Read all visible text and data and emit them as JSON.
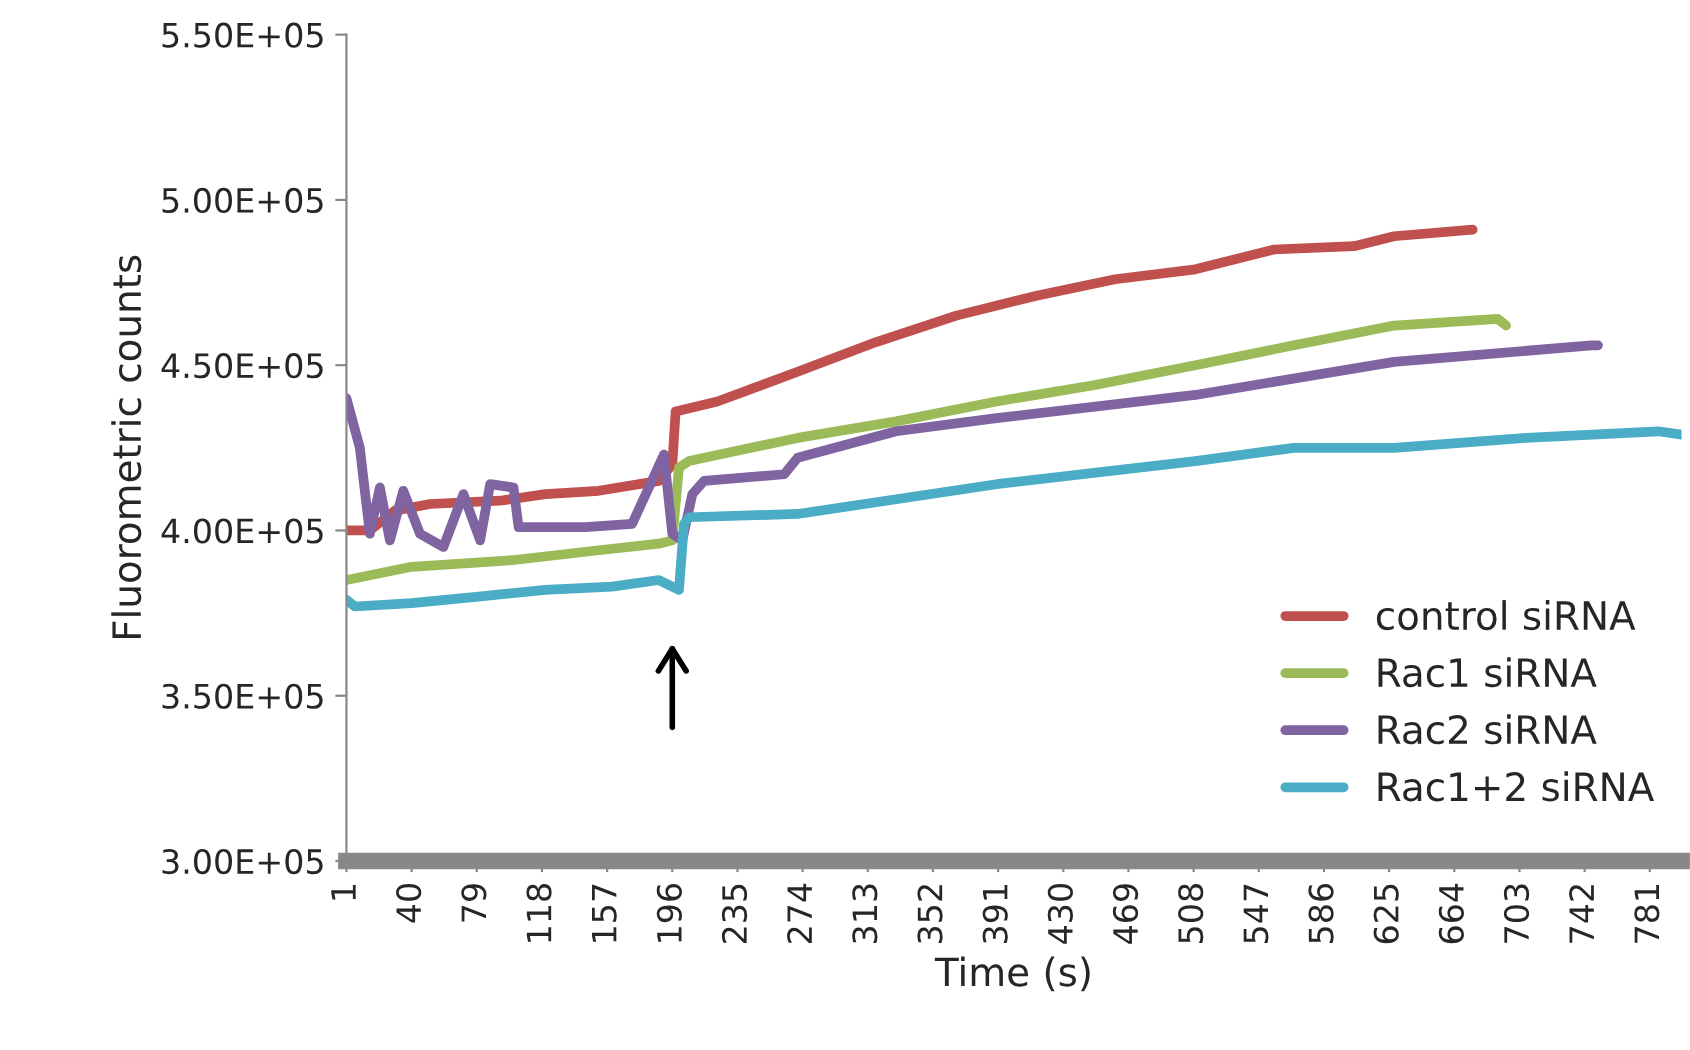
{
  "chart_data": {
    "type": "line",
    "xlabel": "Time (s)",
    "ylabel": "Fluorometric counts",
    "xlim": [
      1,
      800
    ],
    "xticks": [
      1,
      40,
      79,
      118,
      157,
      196,
      235,
      274,
      313,
      352,
      391,
      430,
      469,
      508,
      547,
      586,
      625,
      664,
      703,
      742,
      781
    ],
    "ylim": [
      300000,
      550000
    ],
    "yticks": [
      {
        "value": 300000,
        "label": "3.00E+05"
      },
      {
        "value": 350000,
        "label": "3.50E+05"
      },
      {
        "value": 400000,
        "label": "4.00E+05"
      },
      {
        "value": 450000,
        "label": "4.50E+05"
      },
      {
        "value": 500000,
        "label": "5.00E+05"
      },
      {
        "value": 550000,
        "label": "5.50E+05"
      }
    ],
    "grid": false,
    "legend": "bottom right",
    "line_style": "solid",
    "marker": "none",
    "series": [
      {
        "name": "control siRNA",
        "color": "#c0504d",
        "x": [
          1,
          15,
          30,
          51,
          93,
          120,
          152,
          188,
          196,
          198,
          223,
          271,
          318,
          366,
          414,
          461,
          509,
          556,
          604,
          628,
          675
        ],
        "values": [
          400000,
          400000,
          406000,
          408000,
          409000,
          411000,
          412000,
          415000,
          420000,
          436000,
          439000,
          448000,
          457000,
          465000,
          471000,
          476000,
          479000,
          485000,
          486000,
          489000,
          491000
        ]
      },
      {
        "name": "Rac1 siRNA",
        "color": "#9bbb59",
        "x": [
          1,
          40,
          100,
          152,
          188,
          196,
          200,
          206,
          271,
          330,
          390,
          449,
          509,
          568,
          628,
          690,
          695
        ],
        "values": [
          385000,
          389000,
          391000,
          394000,
          396000,
          397000,
          419000,
          421000,
          428000,
          433000,
          439000,
          444000,
          450000,
          456000,
          462000,
          464000,
          462000
        ]
      },
      {
        "name": "Rac2 siRNA",
        "color": "#8064a2",
        "x": [
          1,
          9,
          15,
          21,
          27,
          35,
          45,
          59,
          71,
          81,
          87,
          101,
          104,
          144,
          172,
          191,
          196,
          202,
          208,
          215,
          263,
          271,
          330,
          390,
          509,
          628,
          746,
          750
        ],
        "values": [
          440000,
          425000,
          399000,
          413000,
          397000,
          412000,
          399000,
          395000,
          411000,
          397000,
          414000,
          413000,
          401000,
          401000,
          402000,
          423000,
          399000,
          397000,
          411000,
          415000,
          417000,
          422000,
          430000,
          434000,
          441000,
          451000,
          456000,
          456000
        ]
      },
      {
        "name": "Rac1+2 siRNA",
        "color": "#4bacc6",
        "x": [
          1,
          6,
          40,
          80,
          120,
          160,
          188,
          200,
          203,
          206,
          271,
          390,
          509,
          568,
          628,
          707,
          786,
          800
        ],
        "values": [
          379000,
          377000,
          378000,
          380000,
          382000,
          383000,
          385000,
          382000,
          402000,
          404000,
          405000,
          414000,
          421000,
          425000,
          425000,
          428000,
          430000,
          429000
        ]
      }
    ]
  }
}
